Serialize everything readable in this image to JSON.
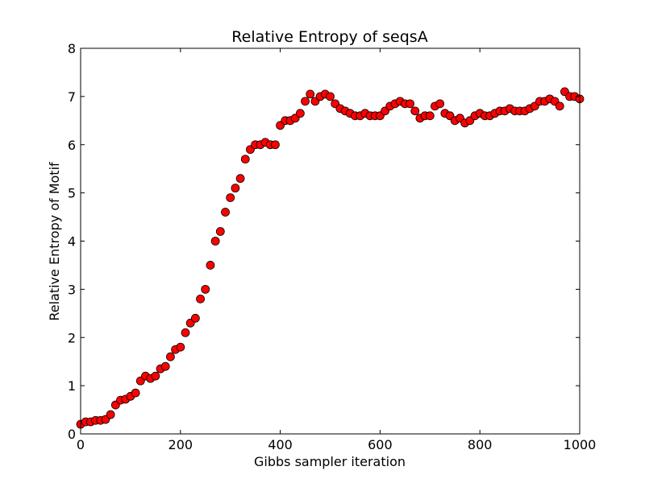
{
  "chart_data": {
    "type": "scatter",
    "title": "Relative Entropy of seqsA",
    "xlabel": "Gibbs sampler iteration",
    "ylabel": "Relative Entropy of Motif",
    "xlim": [
      0,
      1000
    ],
    "ylim": [
      0,
      8
    ],
    "xticks": [
      0,
      200,
      400,
      600,
      800,
      1000
    ],
    "yticks": [
      0,
      1,
      2,
      3,
      4,
      5,
      6,
      7,
      8
    ],
    "grid": false,
    "legend": "none",
    "marker": "circle",
    "marker_color": "#ff0000",
    "marker_edge": "#000000",
    "x": [
      0,
      10,
      20,
      30,
      40,
      50,
      60,
      70,
      80,
      90,
      100,
      110,
      120,
      130,
      140,
      150,
      160,
      170,
      180,
      190,
      200,
      210,
      220,
      230,
      240,
      250,
      260,
      270,
      280,
      290,
      300,
      310,
      320,
      330,
      340,
      350,
      360,
      370,
      380,
      390,
      400,
      410,
      420,
      430,
      440,
      450,
      460,
      470,
      480,
      490,
      500,
      510,
      520,
      530,
      540,
      550,
      560,
      570,
      580,
      590,
      600,
      610,
      620,
      630,
      640,
      650,
      660,
      670,
      680,
      690,
      700,
      710,
      720,
      730,
      740,
      750,
      760,
      770,
      780,
      790,
      800,
      810,
      820,
      830,
      840,
      850,
      860,
      870,
      880,
      890,
      900,
      910,
      920,
      930,
      940,
      950,
      960,
      970,
      980,
      990,
      1000
    ],
    "y": [
      0.2,
      0.25,
      0.25,
      0.28,
      0.28,
      0.3,
      0.4,
      0.6,
      0.7,
      0.72,
      0.78,
      0.85,
      1.1,
      1.2,
      1.15,
      1.2,
      1.35,
      1.4,
      1.6,
      1.75,
      1.8,
      2.1,
      2.3,
      2.4,
      2.8,
      3.0,
      3.5,
      4.0,
      4.2,
      4.6,
      4.9,
      5.1,
      5.3,
      5.7,
      5.9,
      6.0,
      6.0,
      6.05,
      6.0,
      6.0,
      6.4,
      6.5,
      6.5,
      6.55,
      6.65,
      6.9,
      7.05,
      6.9,
      7.0,
      7.05,
      7.0,
      6.85,
      6.75,
      6.7,
      6.65,
      6.6,
      6.6,
      6.65,
      6.6,
      6.6,
      6.6,
      6.7,
      6.8,
      6.85,
      6.9,
      6.85,
      6.85,
      6.7,
      6.55,
      6.6,
      6.6,
      6.8,
      6.85,
      6.65,
      6.6,
      6.5,
      6.55,
      6.45,
      6.5,
      6.6,
      6.65,
      6.6,
      6.6,
      6.65,
      6.7,
      6.7,
      6.75,
      6.7,
      6.7,
      6.7,
      6.75,
      6.8,
      6.9,
      6.9,
      6.95,
      6.9,
      6.8,
      7.1,
      7.0,
      7.0,
      6.95
    ]
  }
}
